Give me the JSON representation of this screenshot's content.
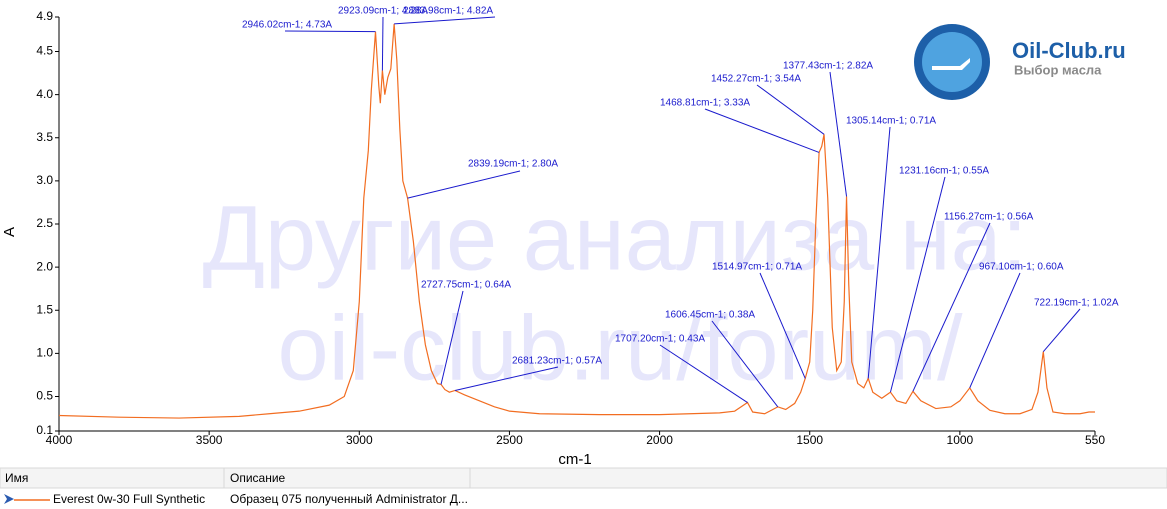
{
  "chart_data": {
    "type": "line",
    "xlabel": "cm-1",
    "ylabel": "A",
    "xlim": [
      4000,
      550
    ],
    "ylim": [
      0.1,
      4.9
    ],
    "xticks": [
      4000,
      3500,
      3000,
      2500,
      2000,
      1500,
      1000,
      550
    ],
    "yticks": [
      0.1,
      0.5,
      {
        "value": 1,
        "label": "1.0"
      },
      1.5,
      {
        "value": 2,
        "label": "2.0"
      },
      2.5,
      {
        "value": 3,
        "label": "3.0"
      },
      3.5,
      {
        "value": 4,
        "label": "4.0"
      },
      4.5,
      4.9
    ],
    "x": [
      4000,
      3800,
      3600,
      3400,
      3300,
      3200,
      3100,
      3050,
      3020,
      3000,
      2985,
      2970,
      2960,
      2946.02,
      2935,
      2930,
      2923.09,
      2915,
      2905,
      2895,
      2883.98,
      2875,
      2865,
      2855,
      2839.19,
      2820,
      2800,
      2780,
      2760,
      2740,
      2727.75,
      2715,
      2700,
      2681.23,
      2650,
      2600,
      2550,
      2500,
      2400,
      2200,
      2000,
      1900,
      1800,
      1750,
      1707.2,
      1690,
      1650,
      1606.45,
      1580,
      1550,
      1530,
      1514.97,
      1500,
      1490,
      1480,
      1468.81,
      1460,
      1452.27,
      1440,
      1425,
      1410,
      1395,
      1385,
      1377.43,
      1370,
      1360,
      1340,
      1320,
      1305.14,
      1290,
      1260,
      1231.16,
      1210,
      1180,
      1156.27,
      1130,
      1080,
      1030,
      1000,
      967.1,
      940,
      900,
      850,
      800,
      760,
      740,
      722.19,
      710,
      690,
      650,
      600,
      570,
      550
    ],
    "series": [
      {
        "name": "Everest 0w-30 Full Synthetic",
        "color": "#f26d21",
        "values": [
          0.28,
          0.26,
          0.25,
          0.27,
          0.3,
          0.33,
          0.4,
          0.5,
          0.8,
          1.6,
          2.8,
          3.35,
          4.05,
          4.73,
          4.1,
          3.9,
          4.28,
          4.0,
          4.2,
          4.3,
          4.82,
          4.4,
          3.6,
          3.0,
          2.8,
          2.3,
          1.6,
          1.1,
          0.8,
          0.65,
          0.64,
          0.58,
          0.55,
          0.57,
          0.52,
          0.45,
          0.38,
          0.33,
          0.3,
          0.29,
          0.29,
          0.3,
          0.31,
          0.33,
          0.43,
          0.32,
          0.3,
          0.38,
          0.35,
          0.42,
          0.55,
          0.71,
          0.9,
          1.5,
          2.5,
          3.33,
          3.4,
          3.54,
          2.8,
          1.3,
          0.8,
          0.9,
          1.6,
          2.82,
          1.8,
          0.9,
          0.65,
          0.6,
          0.71,
          0.55,
          0.48,
          0.55,
          0.45,
          0.42,
          0.56,
          0.45,
          0.36,
          0.38,
          0.45,
          0.6,
          0.45,
          0.34,
          0.3,
          0.3,
          0.35,
          0.55,
          1.02,
          0.6,
          0.32,
          0.3,
          0.3,
          0.32,
          0.32
        ]
      }
    ],
    "annotations": [
      {
        "text": "2946.02cm-1; 4.73A",
        "x": 2946.02,
        "y": 4.73
      },
      {
        "text": "2923.09cm-1; 4.28A",
        "x": 2923.09,
        "y": 4.28
      },
      {
        "text": "2883.98cm-1; 4.82A",
        "x": 2883.98,
        "y": 4.82
      },
      {
        "text": "2839.19cm-1; 2.80A",
        "x": 2839.19,
        "y": 2.8
      },
      {
        "text": "2727.75cm-1; 0.64A",
        "x": 2727.75,
        "y": 0.64
      },
      {
        "text": "2681.23cm-1; 0.57A",
        "x": 2681.23,
        "y": 0.57
      },
      {
        "text": "1707.20cm-1; 0.43A",
        "x": 1707.2,
        "y": 0.43
      },
      {
        "text": "1606.45cm-1; 0.38A",
        "x": 1606.45,
        "y": 0.38
      },
      {
        "text": "1514.97cm-1; 0.71A",
        "x": 1514.97,
        "y": 0.71
      },
      {
        "text": "1468.81cm-1; 3.33A",
        "x": 1468.81,
        "y": 3.33
      },
      {
        "text": "1452.27cm-1; 3.54A",
        "x": 1452.27,
        "y": 3.54
      },
      {
        "text": "1377.43cm-1; 2.82A",
        "x": 1377.43,
        "y": 2.82
      },
      {
        "text": "1305.14cm-1; 0.71A",
        "x": 1305.14,
        "y": 0.71
      },
      {
        "text": "1231.16cm-1; 0.55A",
        "x": 1231.16,
        "y": 0.55
      },
      {
        "text": "1156.27cm-1; 0.56A",
        "x": 1156.27,
        "y": 0.56
      },
      {
        "text": "967.10cm-1; 0.60A",
        "x": 967.1,
        "y": 0.6
      },
      {
        "text": "722.19cm-1; 1.02A",
        "x": 722.19,
        "y": 1.02
      }
    ]
  },
  "watermark": [
    "Другие анализа на:",
    "oil-club.ru/forum/"
  ],
  "logo": {
    "title": "Oil-Club.ru",
    "subtitle": "Выбор масла"
  },
  "table": {
    "headers": [
      "Имя",
      "Описание"
    ],
    "description": "Образец 075 полученный Administrator Д..."
  }
}
